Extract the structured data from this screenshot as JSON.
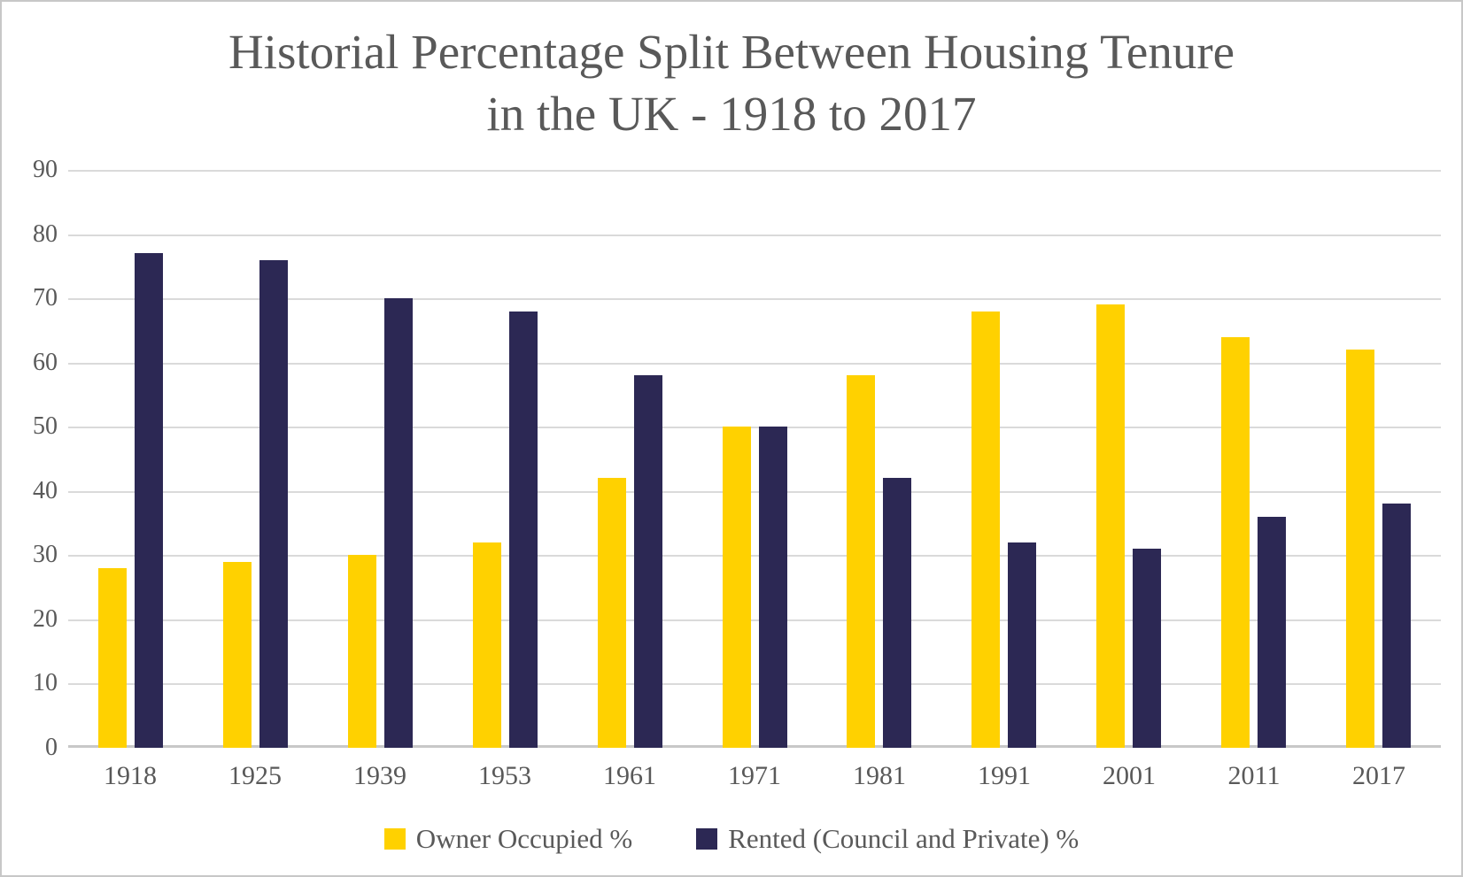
{
  "chart_data": {
    "type": "bar",
    "title": "Historial Percentage Split Between Housing Tenure in the UK - 1918 to 2017",
    "categories": [
      "1918",
      "1925",
      "1939",
      "1953",
      "1961",
      "1971",
      "1981",
      "1991",
      "2001",
      "2011",
      "2017"
    ],
    "series": [
      {
        "name": "Owner Occupied %",
        "color": "#FFD100",
        "values": [
          28,
          29,
          30,
          32,
          42,
          50,
          58,
          68,
          69,
          64,
          62
        ]
      },
      {
        "name": "Rented (Council and Private) %",
        "color": "#2C2854",
        "values": [
          77,
          76,
          70,
          68,
          58,
          50,
          42,
          32,
          31,
          36,
          38
        ]
      }
    ],
    "ylim": [
      0,
      90
    ],
    "yticks": [
      0,
      10,
      20,
      30,
      40,
      50,
      60,
      70,
      80,
      90
    ],
    "ytick_interval": 10,
    "grid": "horizontal-only",
    "legend_position": "bottom",
    "colors": {
      "title_text": "#595959",
      "axis_text": "#595959",
      "gridline": "#DADADA",
      "axis_line": "#C8C8C8",
      "background": "#FFFFFF",
      "frame_border": "#C7C7C7"
    }
  }
}
